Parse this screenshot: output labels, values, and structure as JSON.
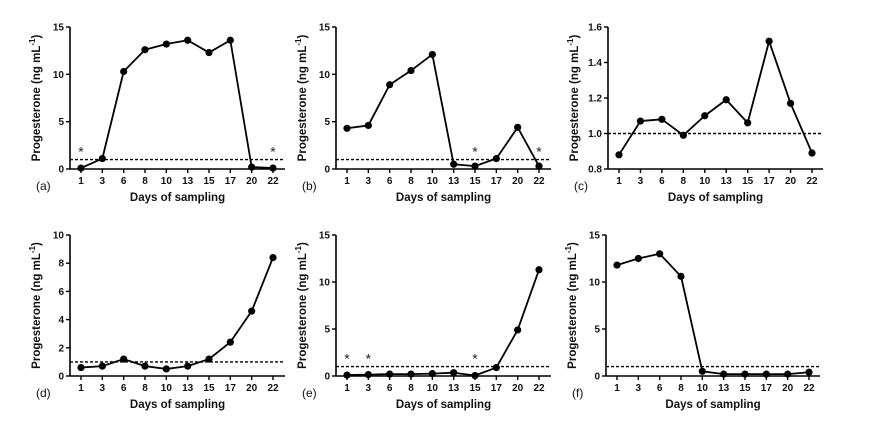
{
  "chart_data": [
    {
      "type": "line",
      "panel_label": "(a)",
      "xlabel": "Days of sampling",
      "ylabel": "Progesterone (ng mL",
      "ylabel_sup": "-1",
      "ylabel_close": ")",
      "categories": [
        "1",
        "3",
        "6",
        "8",
        "10",
        "13",
        "15",
        "17",
        "20",
        "22"
      ],
      "values": [
        0.1,
        1.1,
        10.3,
        12.6,
        13.2,
        13.6,
        12.3,
        13.6,
        0.2,
        0.1
      ],
      "ylim": [
        0,
        15
      ],
      "yticks": [
        0,
        5,
        10,
        15
      ],
      "ytick_labels": [
        "0",
        "5",
        "10",
        "15"
      ],
      "threshold": 1.0,
      "asterisks": [
        "1",
        "22"
      ],
      "asterisk_symbol": "*",
      "grid": false,
      "legend": "none"
    },
    {
      "type": "line",
      "panel_label": "(b)",
      "xlabel": "Days of sampling",
      "ylabel": "Progesterone (ng mL",
      "ylabel_sup": "-1",
      "ylabel_close": ")",
      "categories": [
        "1",
        "3",
        "6",
        "8",
        "10",
        "13",
        "15",
        "17",
        "20",
        "22"
      ],
      "values": [
        4.3,
        4.6,
        8.9,
        10.4,
        12.1,
        0.5,
        0.3,
        1.1,
        4.4,
        0.3
      ],
      "ylim": [
        0,
        15
      ],
      "yticks": [
        0,
        5,
        10,
        15
      ],
      "ytick_labels": [
        "0",
        "5",
        "10",
        "15"
      ],
      "threshold": 1.0,
      "asterisks": [
        "15",
        "22"
      ],
      "asterisk_symbol": "*",
      "grid": false,
      "legend": "none"
    },
    {
      "type": "line",
      "panel_label": "(c)",
      "xlabel": "Days of sampling",
      "ylabel": "Progesterone (ng mL",
      "ylabel_sup": "-1",
      "ylabel_close": ")",
      "categories": [
        "1",
        "3",
        "6",
        "8",
        "10",
        "13",
        "15",
        "17",
        "20",
        "22"
      ],
      "values": [
        0.88,
        1.07,
        1.08,
        0.99,
        1.1,
        1.19,
        1.06,
        1.52,
        1.17,
        0.89
      ],
      "ylim": [
        0.8,
        1.6
      ],
      "yticks": [
        0.8,
        1.0,
        1.2,
        1.4,
        1.6
      ],
      "ytick_labels": [
        "0.8",
        "1.0",
        "1.2",
        "1.4",
        "1.6"
      ],
      "threshold": 1.0,
      "asterisks": [],
      "asterisk_symbol": "*",
      "grid": false,
      "legend": "none"
    },
    {
      "type": "line",
      "panel_label": "(d)",
      "xlabel": "Days of sampling",
      "ylabel": "Progesterone (ng mL",
      "ylabel_sup": "-1",
      "ylabel_close": ")",
      "categories": [
        "1",
        "3",
        "6",
        "8",
        "10",
        "13",
        "15",
        "17",
        "20",
        "22"
      ],
      "values": [
        0.6,
        0.7,
        1.2,
        0.7,
        0.5,
        0.7,
        1.2,
        2.4,
        4.6,
        8.4
      ],
      "ylim": [
        0,
        10
      ],
      "yticks": [
        0,
        2,
        4,
        6,
        8,
        10
      ],
      "ytick_labels": [
        "0",
        "2",
        "4",
        "6",
        "8",
        "10"
      ],
      "threshold": 1.0,
      "asterisks": [],
      "asterisk_symbol": "*",
      "grid": false,
      "legend": "none"
    },
    {
      "type": "line",
      "panel_label": "(e)",
      "xlabel": "Days of sampling",
      "ylabel": "Progesterone (ng mL",
      "ylabel_sup": "-1",
      "ylabel_close": ")",
      "categories": [
        "1",
        "3",
        "6",
        "8",
        "10",
        "13",
        "15",
        "17",
        "20",
        "22"
      ],
      "values": [
        0.1,
        0.15,
        0.2,
        0.2,
        0.25,
        0.35,
        0.05,
        0.9,
        4.9,
        11.3
      ],
      "ylim": [
        0,
        15
      ],
      "yticks": [
        0,
        5,
        10,
        15
      ],
      "ytick_labels": [
        "0",
        "5",
        "10",
        "15"
      ],
      "threshold": 1.0,
      "asterisks": [
        "1",
        "3",
        "15"
      ],
      "asterisk_symbol": "*",
      "grid": false,
      "legend": "none"
    },
    {
      "type": "line",
      "panel_label": "(f)",
      "xlabel": "Days of sampling",
      "ylabel": "Progesterone (ng mL",
      "ylabel_sup": "-1",
      "ylabel_close": ")",
      "categories": [
        "1",
        "3",
        "6",
        "8",
        "10",
        "13",
        "15",
        "17",
        "20",
        "22"
      ],
      "values": [
        11.8,
        12.5,
        13.0,
        10.6,
        0.5,
        0.2,
        0.2,
        0.2,
        0.2,
        0.4
      ],
      "ylim": [
        0,
        15
      ],
      "yticks": [
        0,
        5,
        10,
        15
      ],
      "ytick_labels": [
        "0",
        "5",
        "10",
        "15"
      ],
      "threshold": 1.0,
      "asterisks": [],
      "asterisk_symbol": "*",
      "grid": false,
      "legend": "none"
    }
  ]
}
